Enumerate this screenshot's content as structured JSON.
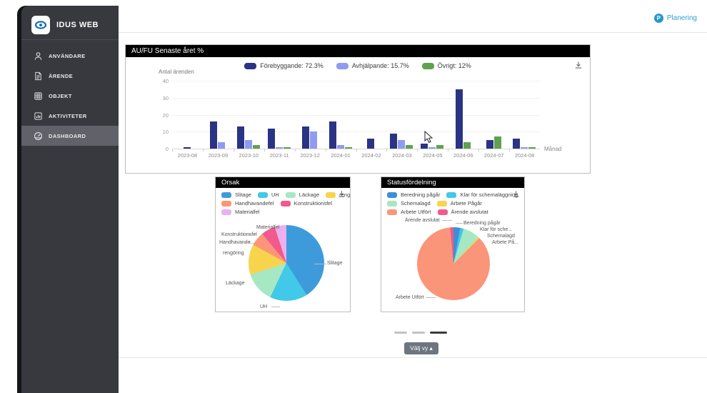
{
  "app": {
    "name": "IDUS WEB"
  },
  "topbar": {
    "planering_label": "Planering",
    "planering_badge": "P"
  },
  "sidebar": {
    "items": [
      {
        "label": "ANVÄNDARE",
        "icon": "user-icon",
        "active": false
      },
      {
        "label": "ÄRENDE",
        "icon": "document-icon",
        "active": false
      },
      {
        "label": "OBJEKT",
        "icon": "grid-icon",
        "active": false
      },
      {
        "label": "AKTIVITETER",
        "icon": "activities-icon",
        "active": false
      },
      {
        "label": "DASHBOARD",
        "icon": "dashboard-icon",
        "active": true
      }
    ]
  },
  "bar_card": {
    "title": "AU/FU Senaste året %",
    "y_axis_label": "Antal ärenden",
    "x_axis_label": "Månad",
    "legend": [
      "Förebyggande: 72.3%",
      "Avhjälpande: 15.7%",
      "Övrigt: 12%"
    ]
  },
  "orsak_card": {
    "title": "Orsak",
    "legend_rows": [
      [
        "Slitage",
        "UH",
        "Läckage",
        "rengöring"
      ],
      [
        "Handhavandefel",
        "Konstruktionsfel"
      ],
      [
        "Materialfel"
      ]
    ],
    "callouts": [
      "Materialfel",
      "Konstruktionsfel",
      "Handhavande...",
      "rengöring",
      "Läckage",
      "UH",
      "Slitage"
    ]
  },
  "status_card": {
    "title": "Statusfördelning",
    "legend_rows": [
      [
        "Beredning pågår",
        "Klar för schemaläggning"
      ],
      [
        "Schemalagd",
        "Arbete Pågår"
      ],
      [
        "Arbete Utfört",
        "Ärende avslutat"
      ]
    ],
    "callouts": [
      "Ärende avslutat",
      "Beredning pågår",
      "Klar för sche...",
      "Schemalagd",
      "Arbete På...",
      "Arbete Utfört"
    ]
  },
  "footer": {
    "valj_vy_label": "Välj vy ▴"
  },
  "chart_data": [
    {
      "type": "bar",
      "title": "AU/FU Senaste året %",
      "xlabel": "Månad",
      "ylabel": "Antal ärenden",
      "ylim": [
        0,
        40
      ],
      "y_ticks": [
        0,
        10,
        20,
        30,
        40
      ],
      "grid": true,
      "legend_position": "top-center",
      "categories": [
        "2023-08",
        "2023-09",
        "2023-10",
        "2023-11",
        "2023-12",
        "2024-01",
        "2024-02",
        "2024-03",
        "2024-05",
        "2024-06",
        "2024-07",
        "2024-08"
      ],
      "series": [
        {
          "name": "Förebyggande",
          "values": [
            1,
            16,
            13,
            12,
            13,
            16,
            6,
            9,
            3,
            35,
            5,
            6
          ]
        },
        {
          "name": "Avhjälpande",
          "values": [
            0,
            4,
            5,
            1,
            10,
            2,
            0,
            5,
            1,
            0,
            0,
            1
          ]
        },
        {
          "name": "Övrigt",
          "values": [
            0,
            0,
            2,
            1,
            0,
            1,
            0,
            2,
            2,
            4,
            7,
            1
          ]
        }
      ],
      "colors": [
        "#2a3384",
        "#8f9bee",
        "#5fa24e"
      ]
    },
    {
      "type": "pie",
      "title": "Orsak",
      "labels": [
        "Slitage",
        "UH",
        "Läckage",
        "rengöring",
        "Handhavandefel",
        "Konstruktionsfel",
        "Materialfel"
      ],
      "values": [
        41,
        16,
        13,
        13,
        6,
        6,
        5
      ],
      "colors": [
        "#3d9bdb",
        "#42c8e8",
        "#a6e8c4",
        "#f8d44c",
        "#fb9579",
        "#f2598c",
        "#eab0f0"
      ]
    },
    {
      "type": "pie",
      "title": "Statusfördelning",
      "labels": [
        "Beredning pågår",
        "Klar för schemaläggning",
        "Schemalagd",
        "Arbete Pågår",
        "Arbete Utfört",
        "Ärende avslutat"
      ],
      "values": [
        3,
        1.5,
        7.5,
        0.5,
        86,
        1.5
      ],
      "colors": [
        "#3d8fd6",
        "#42c8e8",
        "#a6e8c4",
        "#f8d44c",
        "#fb9579",
        "#f2598c"
      ]
    }
  ]
}
